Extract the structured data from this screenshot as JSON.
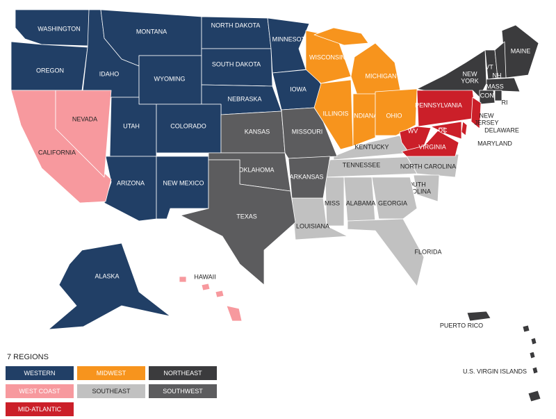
{
  "legend": {
    "title": "7 REGIONS"
  },
  "regions": [
    {
      "name": "WESTERN",
      "color": "#213f66",
      "states": [
        "WASHINGTON",
        "OREGON",
        "IDAHO",
        "MONTANA",
        "WYOMING",
        "NORTH DAKOTA",
        "SOUTH DAKOTA",
        "NEBRASKA",
        "MINNESOTA",
        "IOWA",
        "UTAH",
        "COLORADO",
        "ARIZONA",
        "NEW MEXICO",
        "ALASKA"
      ]
    },
    {
      "name": "MIDWEST",
      "color": "#f7941d",
      "states": [
        "WISCONSIN",
        "MICHIGAN",
        "ILLINOIS",
        "INDIANA",
        "OHIO"
      ]
    },
    {
      "name": "NORTHEAST",
      "color": "#3b3b3d",
      "states": [
        "MAINE",
        "NEW YORK",
        "VT",
        "NH",
        "MASS",
        "CONN",
        "RI",
        "PUERTO RICO",
        "U.S. VIRGIN ISLANDS"
      ]
    },
    {
      "name": "WEST COAST",
      "color": "#f7999e",
      "states": [
        "CALIFORNIA",
        "NEVADA",
        "HAWAII"
      ]
    },
    {
      "name": "SOUTHEAST",
      "color": "#c1c1c1",
      "states": [
        "KENTUCKY",
        "TENNESSEE",
        "NORTH CAROLINA",
        "SOUTH CAROLINA",
        "MISS",
        "ALABAMA",
        "GEORGIA",
        "LOUISIANA",
        "FLORIDA"
      ]
    },
    {
      "name": "SOUTHWEST",
      "color": "#5c5c5e",
      "states": [
        "KANSAS",
        "MISSOURI",
        "OKLAHOMA",
        "ARKANSAS",
        "TEXAS"
      ]
    },
    {
      "name": "MID-ATLANTIC",
      "color": "#cb1f29",
      "states": [
        "PENNSYLVANIA",
        "NEW JERSEY",
        "DELAWARE",
        "MARYLAND",
        "DC",
        "WV",
        "VIRGINIA"
      ]
    }
  ]
}
